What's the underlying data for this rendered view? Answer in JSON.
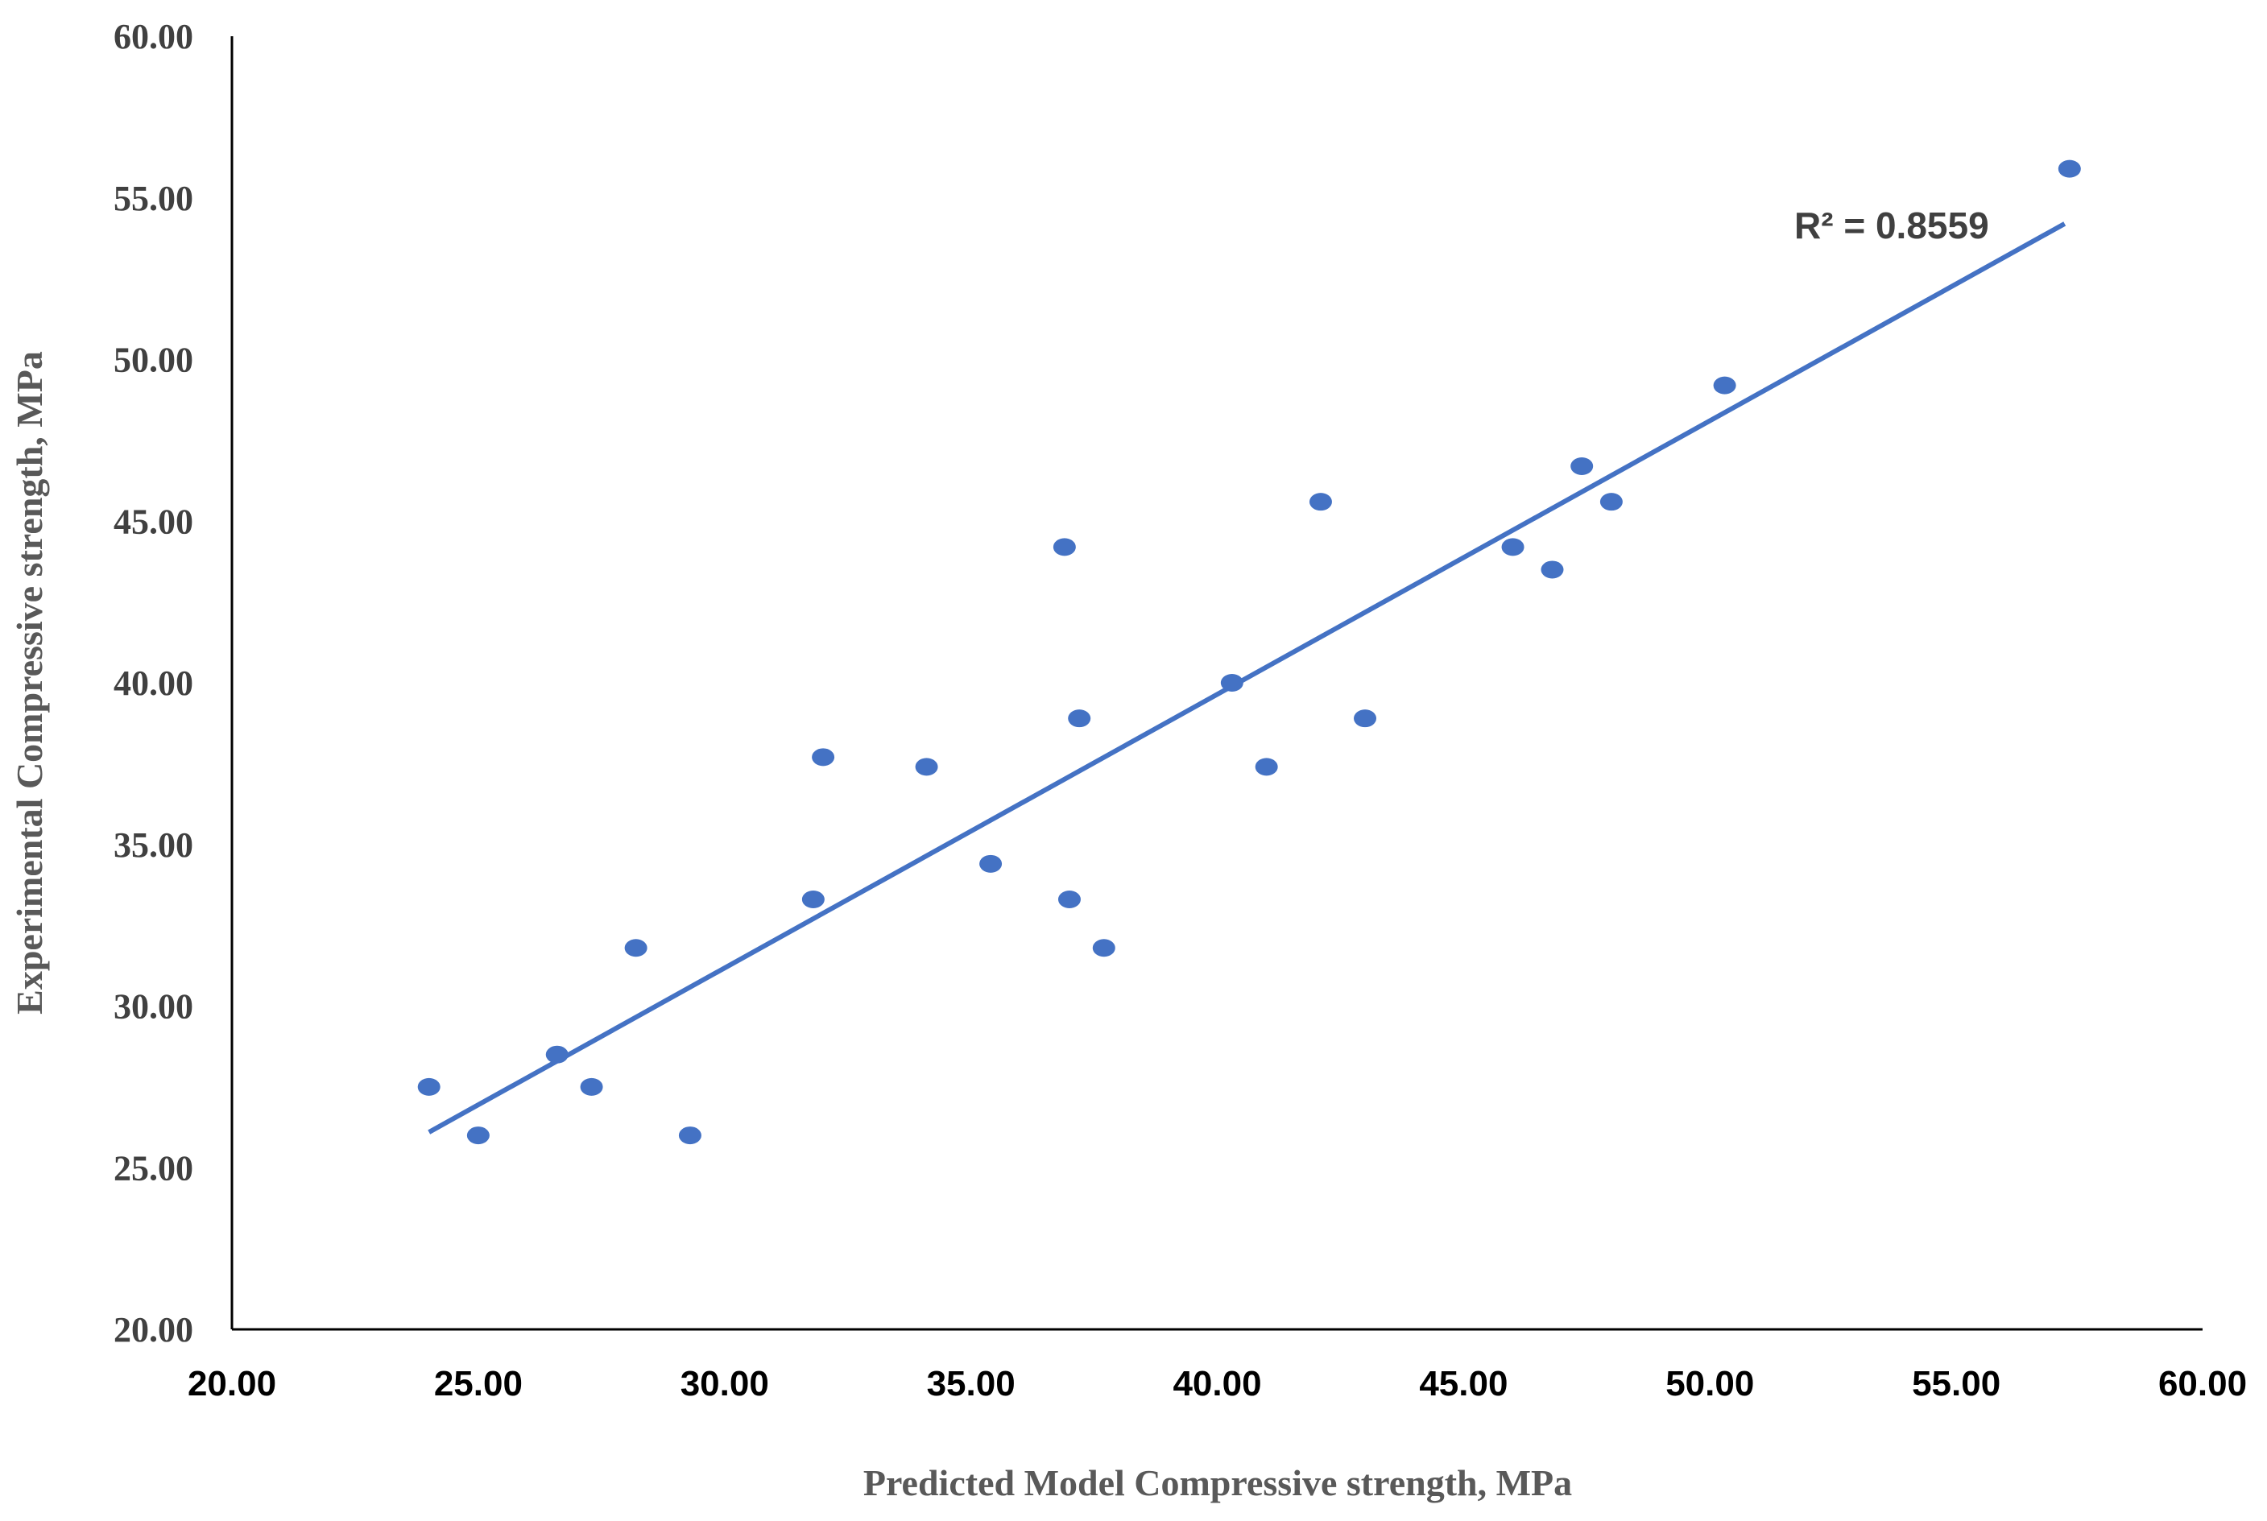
{
  "chart_data": {
    "type": "scatter",
    "title": "",
    "xlabel": "Predicted Model Compressive strength, MPa",
    "ylabel": "Experimental Compressive strength, MPa",
    "xlim": [
      20,
      60
    ],
    "ylim": [
      20,
      60
    ],
    "x_ticks": [
      "20.00",
      "25.00",
      "30.00",
      "35.00",
      "40.00",
      "45.00",
      "50.00",
      "55.00",
      "60.00"
    ],
    "y_ticks": [
      "20.00",
      "25.00",
      "30.00",
      "35.00",
      "40.00",
      "45.00",
      "50.00",
      "55.00",
      "60.00"
    ],
    "grid": false,
    "legend": "none",
    "series": [
      {
        "points": [
          {
            "x": 24.0,
            "y": 27.5
          },
          {
            "x": 25.0,
            "y": 26.0
          },
          {
            "x": 26.6,
            "y": 28.5
          },
          {
            "x": 27.3,
            "y": 27.5
          },
          {
            "x": 28.2,
            "y": 31.8
          },
          {
            "x": 29.3,
            "y": 26.0
          },
          {
            "x": 31.8,
            "y": 33.3
          },
          {
            "x": 32.0,
            "y": 37.7
          },
          {
            "x": 34.1,
            "y": 37.4
          },
          {
            "x": 35.4,
            "y": 34.4
          },
          {
            "x": 36.9,
            "y": 44.2
          },
          {
            "x": 37.0,
            "y": 33.3
          },
          {
            "x": 37.2,
            "y": 38.9
          },
          {
            "x": 37.7,
            "y": 31.8
          },
          {
            "x": 40.3,
            "y": 40.0
          },
          {
            "x": 41.0,
            "y": 37.4
          },
          {
            "x": 42.1,
            "y": 45.6
          },
          {
            "x": 43.0,
            "y": 38.9
          },
          {
            "x": 46.0,
            "y": 44.2
          },
          {
            "x": 46.8,
            "y": 43.5
          },
          {
            "x": 47.4,
            "y": 46.7
          },
          {
            "x": 48.0,
            "y": 45.6
          },
          {
            "x": 50.3,
            "y": 49.2
          },
          {
            "x": 57.3,
            "y": 55.9
          }
        ]
      }
    ],
    "trendline": {
      "type": "linear",
      "start": {
        "x": 24.0,
        "y": 26.1
      },
      "end": {
        "x": 57.2,
        "y": 54.2
      },
      "label": "R² = 0.8559"
    },
    "colors": {
      "marker": "#4472C4",
      "trendline": "#4472C4",
      "axis": "#000000"
    }
  }
}
